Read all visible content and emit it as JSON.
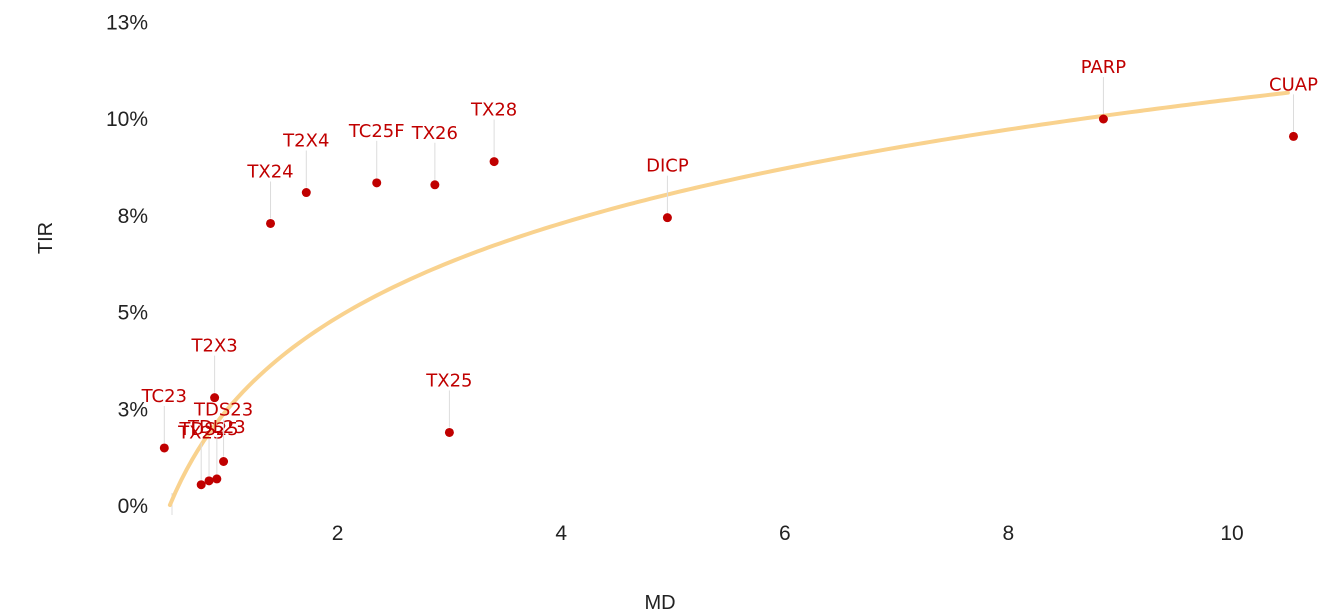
{
  "chart_data": {
    "type": "scatter",
    "title": "",
    "xlabel": "MD",
    "ylabel": "TIR",
    "xlim": [
      0.1,
      10.8
    ],
    "ylim": [
      0,
      13
    ],
    "x_ticks": [
      2,
      4,
      6,
      8,
      10
    ],
    "x_tick_labels": [
      "2",
      "4",
      "6",
      "8",
      "10"
    ],
    "y_ticks": [
      0,
      2.5,
      5,
      7.5,
      10,
      12.5
    ],
    "y_tick_labels": [
      "0%",
      "3%",
      "5%",
      "8%",
      "10%",
      "13%"
    ],
    "grid": false,
    "point_color": "#c00000",
    "label_color": "#c00000",
    "trend_color": "#f9d28e",
    "trend_line": {
      "type": "logarithmic",
      "a": 2.45,
      "b": 3.5,
      "x_from": 0.5,
      "x_to": 10.5
    },
    "points": [
      {
        "label": "TC23",
        "x": 0.45,
        "y": 1.5
      },
      {
        "label": "TX23",
        "x": 0.78,
        "y": 0.55
      },
      {
        "label": "TDS25",
        "x": 0.85,
        "y": 0.65
      },
      {
        "label": "TDL23",
        "x": 0.92,
        "y": 0.7
      },
      {
        "label": "T2X3",
        "x": 0.9,
        "y": 2.8
      },
      {
        "label": "TDS23",
        "x": 0.98,
        "y": 1.15
      },
      {
        "label": "TX24",
        "x": 1.4,
        "y": 7.3
      },
      {
        "label": "T2X4",
        "x": 1.72,
        "y": 8.1
      },
      {
        "label": "TC25F",
        "x": 2.35,
        "y": 8.35
      },
      {
        "label": "TX26",
        "x": 2.87,
        "y": 8.3
      },
      {
        "label": "TX28",
        "x": 3.4,
        "y": 8.9
      },
      {
        "label": "TX25",
        "x": 3.0,
        "y": 1.9
      },
      {
        "label": "DICP",
        "x": 4.95,
        "y": 7.45
      },
      {
        "label": "PARP",
        "x": 8.85,
        "y": 10.0
      },
      {
        "label": "CUAP",
        "x": 10.55,
        "y": 9.55
      }
    ]
  }
}
